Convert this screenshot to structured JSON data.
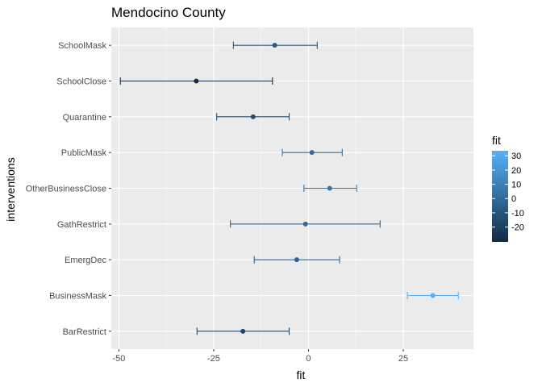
{
  "chart_data": {
    "type": "errorbar",
    "title": "Mendocino County",
    "xlabel": "fit",
    "ylabel": "interventions",
    "xlim": [
      -52,
      43.5
    ],
    "xticks": [
      -50,
      -25,
      0,
      25
    ],
    "xtick_labels": [
      "-50",
      "-25",
      "0",
      "25"
    ],
    "categories": [
      "SchoolMask",
      "SchoolClose",
      "Quarantine",
      "PublicMask",
      "OtherBusinessClose",
      "GathRestrict",
      "EmergDec",
      "BusinessMask",
      "BarRestrict"
    ],
    "series": [
      {
        "fit": [
          -8.9,
          -29.6,
          -14.6,
          0.9,
          5.6,
          -0.8,
          -3.1,
          32.8,
          -17.3
        ],
        "lower": [
          -19.8,
          -49.6,
          -24.2,
          -6.9,
          -1.2,
          -20.6,
          -14.3,
          26.1,
          -29.4
        ],
        "upper": [
          2.3,
          -9.5,
          -5.1,
          8.9,
          12.7,
          18.9,
          8.2,
          39.5,
          -5.1
        ]
      }
    ],
    "grid": true,
    "legend": {
      "title": "fit",
      "position": "right",
      "ticks": [
        30,
        20,
        10,
        0,
        -10,
        -20
      ],
      "tick_labels": [
        "30",
        "20",
        "10",
        "0",
        "-10",
        "-20"
      ],
      "range": [
        -30.4,
        33.5
      ]
    },
    "colors": {
      "low": "#132B43",
      "high": "#56B1F7",
      "panel": "#EBEBEB",
      "grid": "#FFFFFF"
    }
  }
}
